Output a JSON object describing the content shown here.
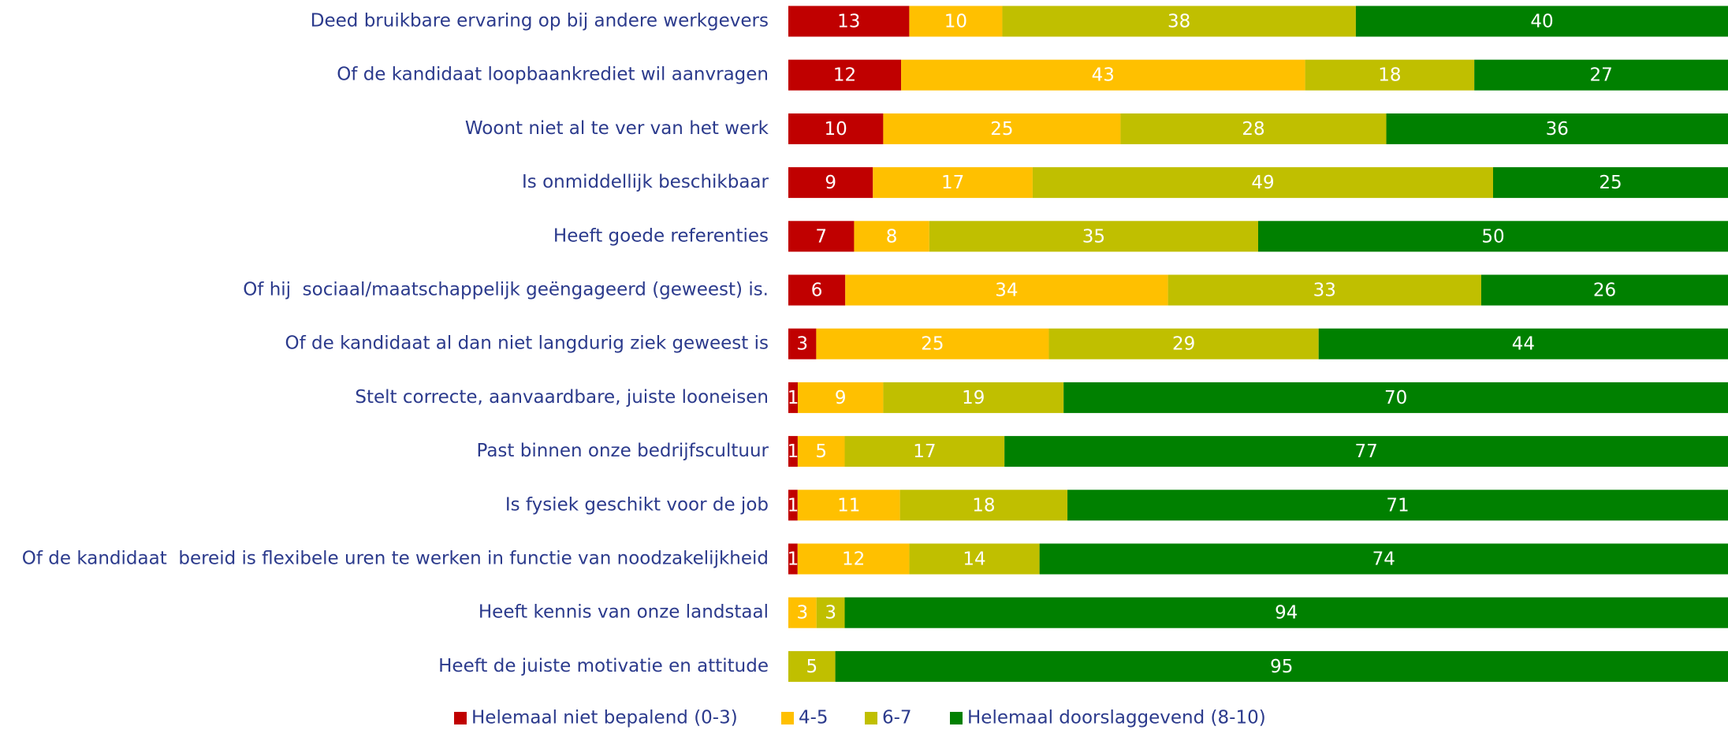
{
  "chart_data": {
    "type": "stacked-bar-horizontal",
    "categories": [
      "Deed bruikbare ervaring op bij andere werkgevers",
      "Of de kandidaat loopbaankrediet wil aanvragen",
      "Woont niet al te ver van het werk",
      "Is onmiddellijk beschikbaar",
      "Heeft goede referenties",
      "Of hij  sociaal/maatschappelijk geëngageerd (geweest) is.",
      "Of de kandidaat al dan niet langdurig ziek geweest is",
      "Stelt correcte, aanvaardbare, juiste looneisen",
      "Past binnen onze bedrijfscultuur",
      "Is fysiek geschikt voor de job",
      "Of de kandidaat  bereid is flexibele uren te werken in functie van noodzakelijkheid",
      "Heeft kennis van onze landstaal",
      "Heeft de juiste motivatie en attitude"
    ],
    "series": [
      {
        "name": "Helemaal niet bepalend (0-3)",
        "color": "#c00000",
        "values": [
          13,
          12,
          10,
          9,
          7,
          6,
          3,
          1,
          1,
          1,
          1,
          0,
          0
        ]
      },
      {
        "name": "4-5",
        "color": "#ffc000",
        "values": [
          10,
          43,
          25,
          17,
          8,
          34,
          25,
          9,
          5,
          11,
          12,
          3,
          0
        ]
      },
      {
        "name": "6-7",
        "color": "#c0bf00",
        "values": [
          38,
          18,
          28,
          49,
          35,
          33,
          29,
          19,
          17,
          18,
          14,
          3,
          5
        ]
      },
      {
        "name": "Helemaal doorslaggevend (8-10)",
        "color": "#008000",
        "values": [
          40,
          27,
          36,
          25,
          50,
          26,
          44,
          70,
          77,
          71,
          74,
          94,
          95
        ]
      }
    ],
    "legend": "bottom"
  }
}
